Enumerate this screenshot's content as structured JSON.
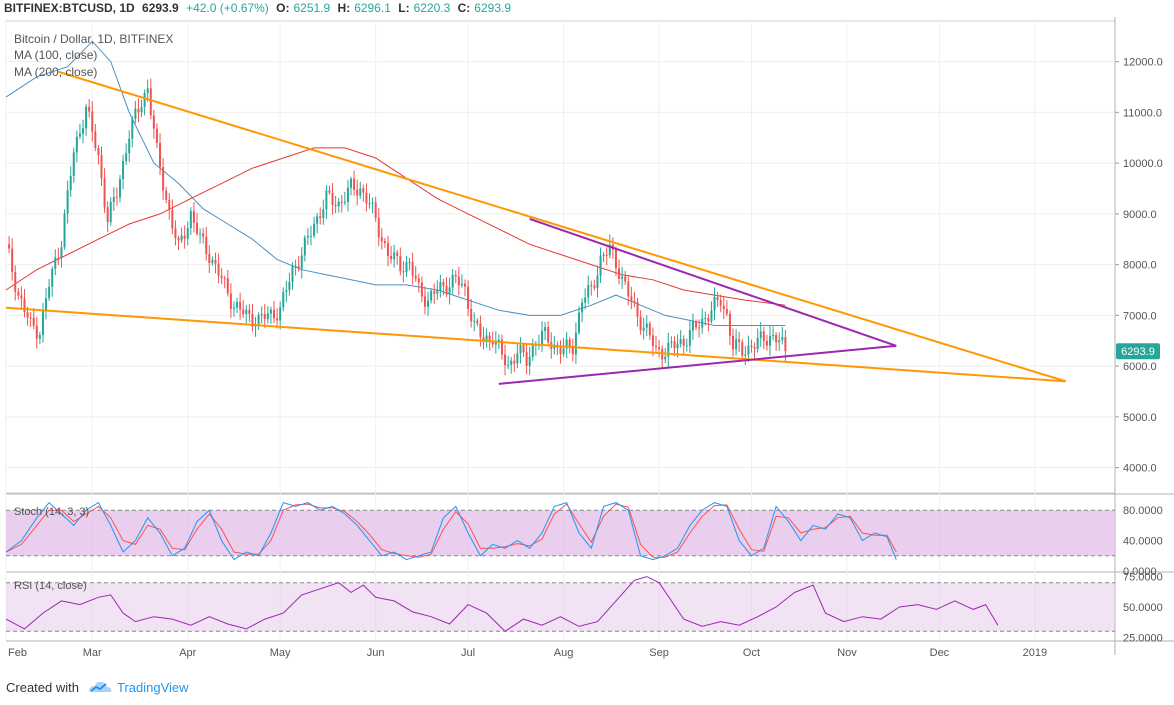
{
  "header": {
    "symbol": "BITFINEX:BTCUSD, 1D",
    "last": "6293.9",
    "change": "+42.0 (+0.67%)",
    "o_label": "O:",
    "o_value": "6251.9",
    "h_label": "H:",
    "h_value": "6296.1",
    "l_label": "L:",
    "l_value": "6220.3",
    "c_label": "C:",
    "c_value": "6293.9"
  },
  "legend": {
    "title": "Bitcoin / Dollar, 1D, BITFINEX",
    "ma100": "MA (100, close)",
    "ma200": "MA (200, close)"
  },
  "price_tag": "6293.9",
  "footer": {
    "created": "Created with",
    "brand": "TradingView"
  },
  "colors": {
    "up": "#26a69a",
    "down": "#ef5350",
    "ma100": "#4a90c2",
    "ma200": "#e53935",
    "orange": "#ff9800",
    "purple": "#9c27b0",
    "stoch_k": "#2196f3",
    "stoch_d": "#ff5252",
    "rsi": "#9c27b0",
    "band_fill": "#e1bee7"
  },
  "chart_data": {
    "type": "candlestick",
    "price_ylim": [
      3500,
      12800
    ],
    "price_ticks": [
      "4000.0",
      "5000.0",
      "6000.0",
      "7000.0",
      "8000.0",
      "9000.0",
      "10000.0",
      "11000.0",
      "12000.0"
    ],
    "x_labels": [
      "Feb",
      "Mar",
      "Apr",
      "May",
      "Jun",
      "Jul",
      "Aug",
      "Sep",
      "Oct",
      "Nov",
      "Dec",
      "2019"
    ],
    "days_total": 360,
    "last_day": 253,
    "close_anchors": [
      [
        0,
        8400
      ],
      [
        4,
        7400
      ],
      [
        8,
        6800
      ],
      [
        11,
        6700
      ],
      [
        14,
        7600
      ],
      [
        18,
        8500
      ],
      [
        22,
        10200
      ],
      [
        26,
        11100
      ],
      [
        30,
        10100
      ],
      [
        33,
        8900
      ],
      [
        36,
        9400
      ],
      [
        40,
        10600
      ],
      [
        44,
        11200
      ],
      [
        46,
        11500
      ],
      [
        49,
        10200
      ],
      [
        52,
        9300
      ],
      [
        56,
        8300
      ],
      [
        60,
        9000
      ],
      [
        63,
        8500
      ],
      [
        66,
        8200
      ],
      [
        70,
        7700
      ],
      [
        74,
        7200
      ],
      [
        78,
        7000
      ],
      [
        82,
        6900
      ],
      [
        85,
        7000
      ],
      [
        89,
        7100
      ],
      [
        93,
        7900
      ],
      [
        96,
        8200
      ],
      [
        100,
        8800
      ],
      [
        104,
        9300
      ],
      [
        108,
        9200
      ],
      [
        112,
        9500
      ],
      [
        115,
        9500
      ],
      [
        118,
        9200
      ],
      [
        121,
        8700
      ],
      [
        124,
        8200
      ],
      [
        128,
        8000
      ],
      [
        131,
        8000
      ],
      [
        134,
        7500
      ],
      [
        137,
        7300
      ],
      [
        140,
        7500
      ],
      [
        143,
        7600
      ],
      [
        146,
        7700
      ],
      [
        149,
        7500
      ],
      [
        152,
        6800
      ],
      [
        155,
        6500
      ],
      [
        158,
        6600
      ],
      [
        161,
        6200
      ],
      [
        163,
        6000
      ],
      [
        166,
        6300
      ],
      [
        169,
        6100
      ],
      [
        172,
        6500
      ],
      [
        175,
        6600
      ],
      [
        178,
        6400
      ],
      [
        181,
        6300
      ],
      [
        184,
        6400
      ],
      [
        187,
        7300
      ],
      [
        190,
        7500
      ],
      [
        193,
        8100
      ],
      [
        196,
        8300
      ],
      [
        199,
        7900
      ],
      [
        202,
        7400
      ],
      [
        205,
        7000
      ],
      [
        208,
        6700
      ],
      [
        211,
        6300
      ],
      [
        214,
        6300
      ],
      [
        217,
        6400
      ],
      [
        220,
        6500
      ],
      [
        223,
        6700
      ],
      [
        226,
        6900
      ],
      [
        229,
        7100
      ],
      [
        232,
        7300
      ],
      [
        234,
        7000
      ],
      [
        236,
        6400
      ],
      [
        239,
        6300
      ],
      [
        242,
        6400
      ],
      [
        245,
        6500
      ],
      [
        248,
        6600
      ],
      [
        251,
        6500
      ],
      [
        253,
        6293.9
      ]
    ],
    "ma100_anchors": [
      [
        0,
        11300
      ],
      [
        10,
        11700
      ],
      [
        20,
        11900
      ],
      [
        28,
        12400
      ],
      [
        34,
        12000
      ],
      [
        40,
        11000
      ],
      [
        48,
        10000
      ],
      [
        56,
        9600
      ],
      [
        64,
        9100
      ],
      [
        72,
        8800
      ],
      [
        80,
        8500
      ],
      [
        88,
        8100
      ],
      [
        96,
        7900
      ],
      [
        104,
        7800
      ],
      [
        112,
        7700
      ],
      [
        120,
        7600
      ],
      [
        130,
        7600
      ],
      [
        140,
        7500
      ],
      [
        150,
        7300
      ],
      [
        160,
        7100
      ],
      [
        170,
        7000
      ],
      [
        180,
        7000
      ],
      [
        190,
        7200
      ],
      [
        198,
        7400
      ],
      [
        206,
        7200
      ],
      [
        214,
        7000
      ],
      [
        222,
        6900
      ],
      [
        230,
        6800
      ],
      [
        240,
        6800
      ],
      [
        253,
        6800
      ]
    ],
    "ma200_anchors": [
      [
        0,
        7500
      ],
      [
        10,
        7900
      ],
      [
        20,
        8200
      ],
      [
        30,
        8500
      ],
      [
        40,
        8800
      ],
      [
        50,
        9000
      ],
      [
        60,
        9300
      ],
      [
        70,
        9600
      ],
      [
        80,
        9900
      ],
      [
        90,
        10100
      ],
      [
        100,
        10300
      ],
      [
        110,
        10300
      ],
      [
        120,
        10100
      ],
      [
        130,
        9700
      ],
      [
        140,
        9300
      ],
      [
        150,
        9000
      ],
      [
        160,
        8700
      ],
      [
        170,
        8400
      ],
      [
        180,
        8200
      ],
      [
        190,
        8000
      ],
      [
        200,
        7800
      ],
      [
        210,
        7700
      ],
      [
        220,
        7500
      ],
      [
        230,
        7400
      ],
      [
        240,
        7300
      ],
      [
        253,
        7200
      ]
    ],
    "trendlines": [
      {
        "color": "orange",
        "p1": [
          17,
          11800
        ],
        "p2": [
          344,
          5700
        ]
      },
      {
        "color": "orange",
        "p1": [
          0,
          7150
        ],
        "p2": [
          344,
          5700
        ]
      },
      {
        "color": "purple",
        "p1": [
          170,
          8900
        ],
        "p2": [
          289,
          6400
        ]
      },
      {
        "color": "purple",
        "p1": [
          160,
          5650
        ],
        "p2": [
          289,
          6400
        ]
      }
    ],
    "stoch": {
      "ylim": [
        0,
        100
      ],
      "band": [
        20,
        80
      ],
      "ticks": [
        "80.0000",
        "40.0000",
        "0.0000"
      ],
      "k_anchors": [
        [
          0,
          25
        ],
        [
          5,
          40
        ],
        [
          10,
          70
        ],
        [
          14,
          90
        ],
        [
          18,
          75
        ],
        [
          22,
          60
        ],
        [
          26,
          80
        ],
        [
          30,
          90
        ],
        [
          34,
          60
        ],
        [
          38,
          25
        ],
        [
          42,
          40
        ],
        [
          46,
          70
        ],
        [
          50,
          50
        ],
        [
          54,
          20
        ],
        [
          58,
          30
        ],
        [
          62,
          65
        ],
        [
          66,
          80
        ],
        [
          70,
          40
        ],
        [
          74,
          15
        ],
        [
          78,
          25
        ],
        [
          82,
          20
        ],
        [
          86,
          50
        ],
        [
          90,
          90
        ],
        [
          94,
          85
        ],
        [
          98,
          90
        ],
        [
          102,
          80
        ],
        [
          106,
          85
        ],
        [
          110,
          75
        ],
        [
          114,
          60
        ],
        [
          118,
          40
        ],
        [
          122,
          20
        ],
        [
          126,
          25
        ],
        [
          130,
          15
        ],
        [
          134,
          20
        ],
        [
          138,
          25
        ],
        [
          142,
          70
        ],
        [
          146,
          85
        ],
        [
          150,
          50
        ],
        [
          154,
          20
        ],
        [
          158,
          35
        ],
        [
          162,
          30
        ],
        [
          166,
          40
        ],
        [
          170,
          30
        ],
        [
          174,
          50
        ],
        [
          178,
          85
        ],
        [
          182,
          90
        ],
        [
          186,
          50
        ],
        [
          190,
          30
        ],
        [
          194,
          85
        ],
        [
          198,
          90
        ],
        [
          202,
          80
        ],
        [
          206,
          20
        ],
        [
          210,
          15
        ],
        [
          214,
          20
        ],
        [
          218,
          30
        ],
        [
          222,
          60
        ],
        [
          226,
          80
        ],
        [
          230,
          90
        ],
        [
          234,
          85
        ],
        [
          238,
          40
        ],
        [
          242,
          20
        ],
        [
          246,
          30
        ],
        [
          250,
          85
        ],
        [
          254,
          65
        ],
        [
          258,
          40
        ],
        [
          262,
          60
        ],
        [
          266,
          55
        ],
        [
          270,
          75
        ],
        [
          274,
          70
        ],
        [
          278,
          40
        ],
        [
          282,
          50
        ],
        [
          286,
          45
        ],
        [
          289,
          15
        ]
      ],
      "d_anchors": [
        [
          0,
          25
        ],
        [
          5,
          35
        ],
        [
          10,
          60
        ],
        [
          14,
          80
        ],
        [
          18,
          80
        ],
        [
          22,
          65
        ],
        [
          26,
          75
        ],
        [
          30,
          85
        ],
        [
          34,
          70
        ],
        [
          38,
          40
        ],
        [
          42,
          35
        ],
        [
          46,
          60
        ],
        [
          50,
          55
        ],
        [
          54,
          30
        ],
        [
          58,
          28
        ],
        [
          62,
          55
        ],
        [
          66,
          75
        ],
        [
          70,
          55
        ],
        [
          74,
          25
        ],
        [
          78,
          22
        ],
        [
          82,
          22
        ],
        [
          86,
          40
        ],
        [
          90,
          80
        ],
        [
          94,
          87
        ],
        [
          98,
          88
        ],
        [
          102,
          83
        ],
        [
          106,
          83
        ],
        [
          110,
          78
        ],
        [
          114,
          65
        ],
        [
          118,
          48
        ],
        [
          122,
          28
        ],
        [
          126,
          23
        ],
        [
          130,
          20
        ],
        [
          134,
          18
        ],
        [
          138,
          22
        ],
        [
          142,
          55
        ],
        [
          146,
          78
        ],
        [
          150,
          62
        ],
        [
          154,
          30
        ],
        [
          158,
          30
        ],
        [
          162,
          32
        ],
        [
          166,
          36
        ],
        [
          170,
          33
        ],
        [
          174,
          42
        ],
        [
          178,
          75
        ],
        [
          182,
          88
        ],
        [
          186,
          62
        ],
        [
          190,
          38
        ],
        [
          194,
          72
        ],
        [
          198,
          88
        ],
        [
          202,
          84
        ],
        [
          206,
          35
        ],
        [
          210,
          18
        ],
        [
          214,
          18
        ],
        [
          218,
          25
        ],
        [
          222,
          50
        ],
        [
          226,
          72
        ],
        [
          230,
          86
        ],
        [
          234,
          87
        ],
        [
          238,
          55
        ],
        [
          242,
          28
        ],
        [
          246,
          26
        ],
        [
          250,
          72
        ],
        [
          254,
          70
        ],
        [
          258,
          50
        ],
        [
          262,
          55
        ],
        [
          266,
          57
        ],
        [
          270,
          70
        ],
        [
          274,
          72
        ],
        [
          278,
          50
        ],
        [
          282,
          47
        ],
        [
          286,
          47
        ],
        [
          289,
          25
        ]
      ]
    },
    "rsi": {
      "ylim": [
        22,
        78
      ],
      "band": [
        30,
        70
      ],
      "ticks": [
        "75.0000",
        "50.0000",
        "25.0000"
      ],
      "anchors": [
        [
          0,
          40
        ],
        [
          6,
          32
        ],
        [
          12,
          45
        ],
        [
          18,
          55
        ],
        [
          24,
          52
        ],
        [
          30,
          58
        ],
        [
          34,
          60
        ],
        [
          38,
          45
        ],
        [
          42,
          38
        ],
        [
          48,
          42
        ],
        [
          54,
          40
        ],
        [
          60,
          35
        ],
        [
          66,
          42
        ],
        [
          72,
          36
        ],
        [
          78,
          32
        ],
        [
          84,
          40
        ],
        [
          90,
          45
        ],
        [
          96,
          60
        ],
        [
          102,
          65
        ],
        [
          108,
          70
        ],
        [
          112,
          62
        ],
        [
          116,
          68
        ],
        [
          120,
          58
        ],
        [
          126,
          55
        ],
        [
          132,
          46
        ],
        [
          138,
          42
        ],
        [
          144,
          36
        ],
        [
          150,
          52
        ],
        [
          156,
          45
        ],
        [
          162,
          30
        ],
        [
          168,
          40
        ],
        [
          174,
          35
        ],
        [
          180,
          42
        ],
        [
          186,
          34
        ],
        [
          192,
          38
        ],
        [
          198,
          55
        ],
        [
          204,
          72
        ],
        [
          208,
          75
        ],
        [
          212,
          70
        ],
        [
          216,
          55
        ],
        [
          220,
          40
        ],
        [
          226,
          34
        ],
        [
          232,
          38
        ],
        [
          238,
          35
        ],
        [
          244,
          42
        ],
        [
          250,
          50
        ],
        [
          256,
          62
        ],
        [
          262,
          68
        ],
        [
          266,
          45
        ],
        [
          272,
          38
        ],
        [
          278,
          42
        ],
        [
          284,
          40
        ],
        [
          290,
          50
        ],
        [
          296,
          52
        ],
        [
          302,
          48
        ],
        [
          308,
          55
        ],
        [
          314,
          48
        ],
        [
          318,
          52
        ],
        [
          322,
          35
        ]
      ]
    }
  }
}
